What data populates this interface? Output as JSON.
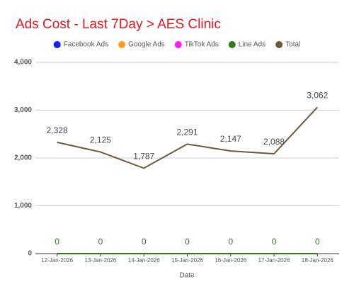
{
  "chart_data": {
    "type": "line",
    "title": "Ads Cost - Last 7Day > AES Clinic",
    "x_label": "Date",
    "categories": [
      "12-Jan-2026",
      "13-Jan-2026",
      "14-Jan-2026",
      "15-Jan-2026",
      "16-Jan-2026",
      "17-Jan-2026",
      "18-Jan-2026"
    ],
    "ylim": [
      0,
      4000
    ],
    "yticks": [
      0,
      {
        "value": 1000,
        "label": "1,000"
      },
      {
        "value": 2000,
        "label": "2,000"
      },
      {
        "value": 3000,
        "label": "3,000"
      },
      {
        "value": 4000,
        "label": "4,000"
      }
    ],
    "grid": true,
    "legend": "top",
    "series": [
      {
        "name": "Facebook Ads",
        "color": "#1a1aff",
        "values": [
          0,
          0,
          0,
          0,
          0,
          0,
          0
        ]
      },
      {
        "name": "Google Ads",
        "color": "#ff9c1a",
        "values": [
          0,
          0,
          0,
          0,
          0,
          0,
          0
        ]
      },
      {
        "name": "TikTok Ads",
        "color": "#ff1aff",
        "values": [
          0,
          0,
          0,
          0,
          0,
          0,
          0
        ]
      },
      {
        "name": "Line Ads",
        "color": "#2e7d1e",
        "values": [
          0,
          0,
          0,
          0,
          0,
          0,
          0
        ],
        "show_labels": true
      },
      {
        "name": "Total",
        "color": "#6b5a3e",
        "values": [
          2328,
          2125,
          1787,
          2291,
          2147,
          2088,
          3062
        ],
        "value_labels": [
          "2,328",
          "2,125",
          "1,787",
          "2,291",
          "2,147",
          "2,088",
          "3,062"
        ],
        "show_labels": true
      }
    ]
  }
}
